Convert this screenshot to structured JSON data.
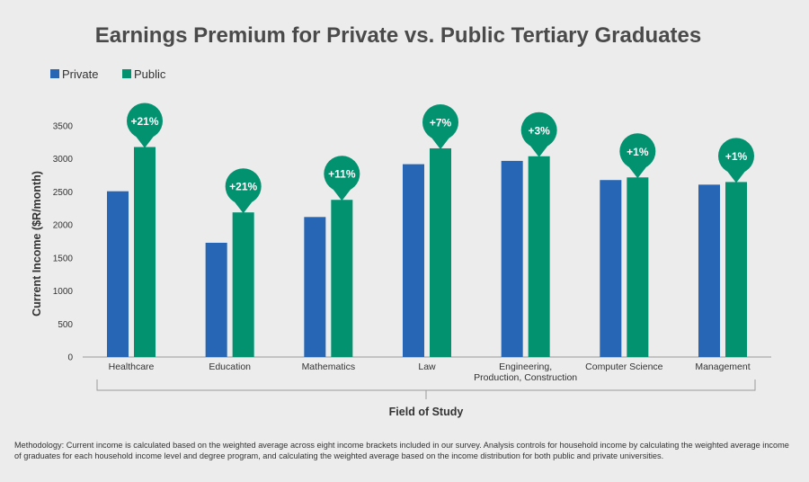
{
  "chart_data": {
    "type": "bar",
    "title": "Earnings Premium for Private vs. Public Tertiary Graduates",
    "xlabel": "Field of Study",
    "ylabel": "Current Income ($R/month)",
    "ylim": [
      0,
      3500
    ],
    "yticks": [
      0,
      500,
      1000,
      1500,
      2000,
      2500,
      3000,
      3500
    ],
    "legend_position": "top-left",
    "grid": false,
    "categories": [
      [
        "Healthcare"
      ],
      [
        "Education"
      ],
      [
        "Mathematics"
      ],
      [
        "Law"
      ],
      [
        "Engineering,",
        "Production, Construction"
      ],
      [
        "Computer Science"
      ],
      [
        "Management"
      ]
    ],
    "series": [
      {
        "name": "Private",
        "color": "#2666b4",
        "values": [
          2510,
          1730,
          2120,
          2920,
          2970,
          2680,
          2610
        ]
      },
      {
        "name": "Public",
        "color": "#039270",
        "values": [
          3180,
          2190,
          2380,
          3160,
          3040,
          2720,
          2650
        ]
      }
    ],
    "annotations": [
      "+21%",
      "+21%",
      "+11%",
      "+7%",
      "+3%",
      "+1%",
      "+1%"
    ]
  },
  "footer": {
    "methodology": "Methodology: Current income is calculated based on the weighted average across eight income brackets included in our survey. Analysis controls for household income by calculating the weighted average income of graduates for each household income level and degree program, and calculating the weighted average based on the income distribution for both public and private universities."
  }
}
